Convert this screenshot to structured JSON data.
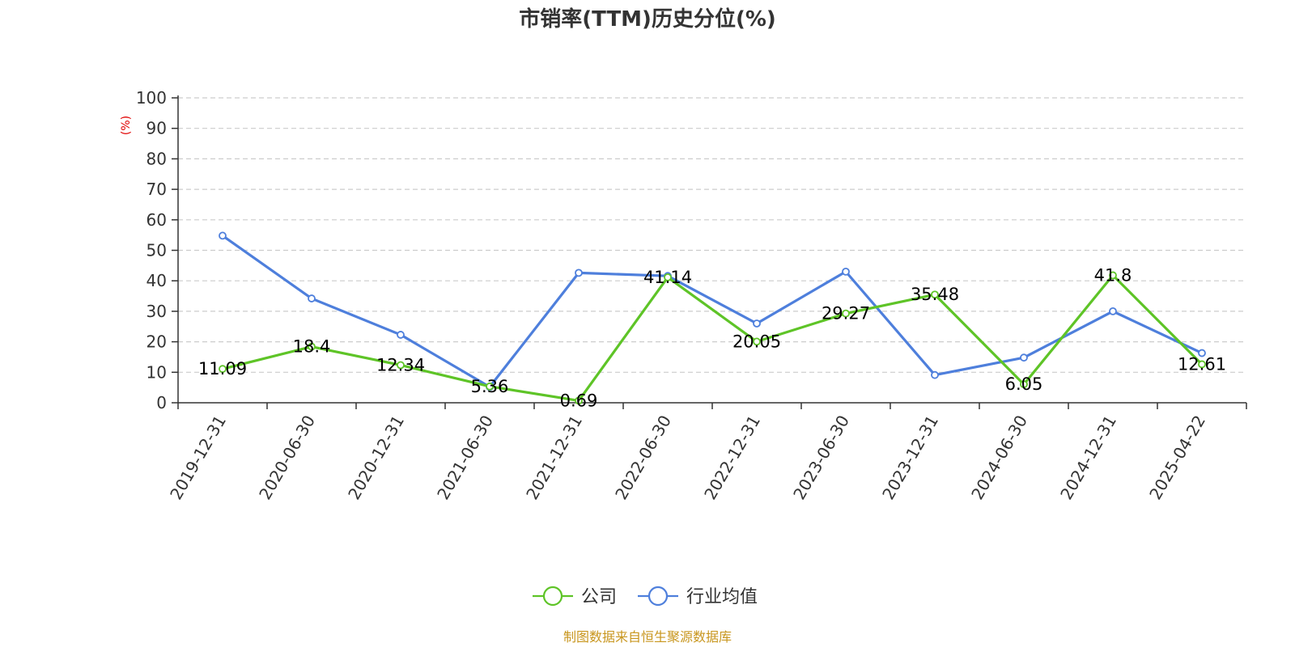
{
  "chart_data": {
    "type": "line",
    "title": "市销率(TTM)历史分位(%)",
    "ylabel": "(%)",
    "ylim": [
      0,
      100
    ],
    "yticks": [
      0,
      10,
      20,
      30,
      40,
      50,
      60,
      70,
      80,
      90,
      100
    ],
    "grid": true,
    "legend_position": "bottom",
    "categories": [
      "2019-12-31",
      "2020-06-30",
      "2020-12-31",
      "2021-06-30",
      "2021-12-31",
      "2022-06-30",
      "2022-12-31",
      "2023-06-30",
      "2023-12-31",
      "2024-06-30",
      "2024-12-31",
      "2025-04-22"
    ],
    "series": [
      {
        "name": "公司",
        "color": "#5ec427",
        "values": [
          11.09,
          18.4,
          12.34,
          5.36,
          0.69,
          41.14,
          20.05,
          29.27,
          35.48,
          6.05,
          41.8,
          12.61
        ],
        "data_labels": [
          "11.09",
          "18.4",
          "12.34",
          "5.36",
          "0.69",
          "41.14",
          "20.05",
          "29.27",
          "35.48",
          "6.05",
          "41.8",
          "12.61"
        ]
      },
      {
        "name": "行业均值",
        "color": "#4e7fdc",
        "values": [
          54.8,
          34.2,
          22.3,
          5.2,
          42.6,
          41.6,
          26.0,
          43.0,
          9.1,
          14.8,
          30.0,
          16.3
        ]
      }
    ]
  },
  "source": "制图数据来自恒生聚源数据库",
  "colors": {
    "axis": "#333333",
    "grid": "#cccccc",
    "ylabel": "#e00000",
    "source": "#c8961e"
  }
}
